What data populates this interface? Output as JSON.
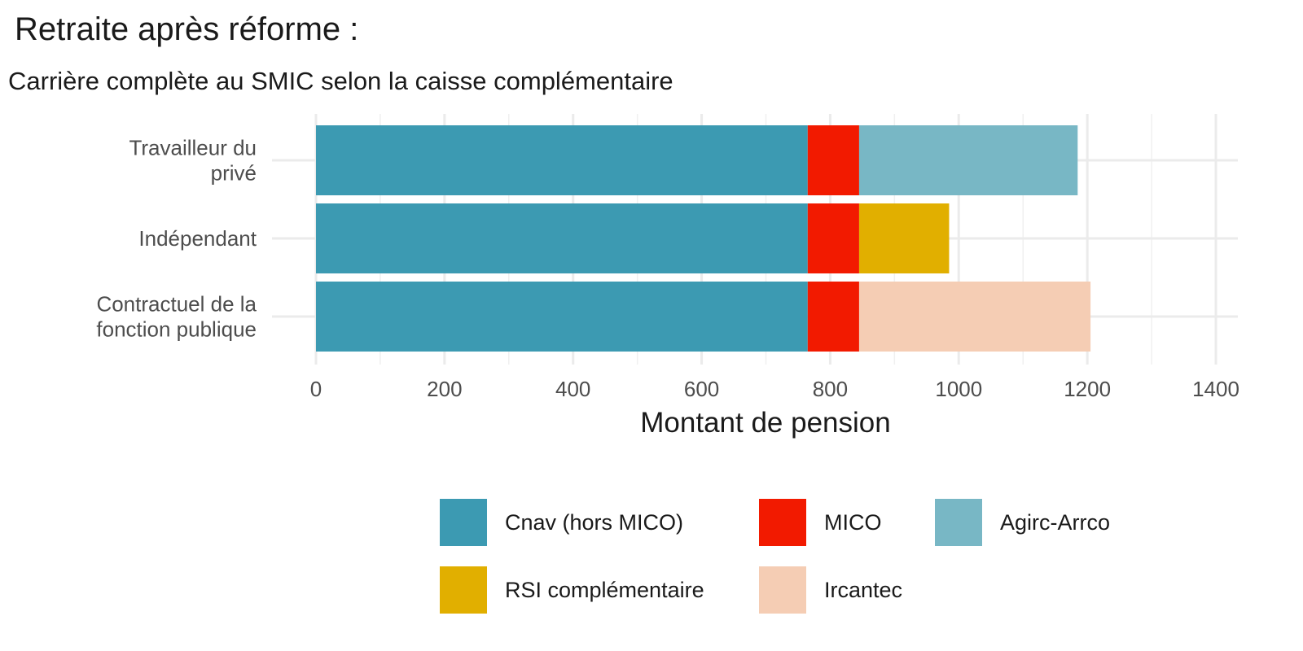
{
  "chart_data": {
    "type": "bar",
    "orientation": "horizontal",
    "stacked": true,
    "title": "Retraite après réforme :",
    "subtitle": "Carrière complète au SMIC selon la caisse complémentaire",
    "xlabel": "Montant de pension",
    "ylabel": "",
    "xlim": [
      0,
      1400
    ],
    "xticks": [
      0,
      200,
      400,
      600,
      800,
      1000,
      1200,
      1400
    ],
    "categories": [
      [
        "Travailleur du",
        "privé"
      ],
      [
        "Indépendant"
      ],
      [
        "Contractuel de la",
        "fonction publique"
      ]
    ],
    "series": [
      {
        "name": "Cnav (hors MICO)",
        "color": "#3c9ab2",
        "values": [
          765,
          765,
          765
        ]
      },
      {
        "name": "MICO",
        "color": "#f21a00",
        "values": [
          80,
          80,
          80
        ]
      },
      {
        "name": "Agirc-Arrco",
        "color": "#78b7c5",
        "values": [
          340,
          0,
          0
        ]
      },
      {
        "name": "RSI complémentaire",
        "color": "#e1af00",
        "values": [
          0,
          140,
          0
        ]
      },
      {
        "name": "Ircantec",
        "color": "#f5cdb4",
        "values": [
          0,
          0,
          360
        ]
      }
    ],
    "grid": true,
    "legend_position": "bottom"
  }
}
